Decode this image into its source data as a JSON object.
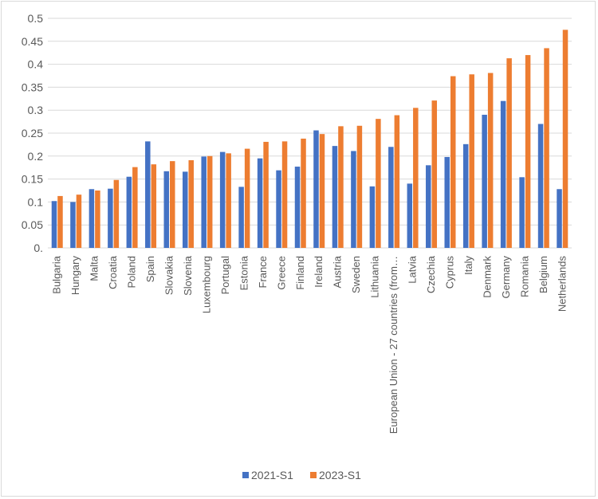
{
  "chart_data": {
    "type": "bar",
    "title": "",
    "xlabel": "",
    "ylabel": "",
    "ylim": [
      0,
      0.5
    ],
    "yticks": [
      0,
      0.05,
      0.1,
      0.15,
      0.2,
      0.25,
      0.3,
      0.35,
      0.4,
      0.45,
      0.5
    ],
    "ytick_labels": [
      "0.",
      "0.05",
      "0.1",
      "0.15",
      "0.2",
      "0.25",
      "0.3",
      "0.35",
      "0.4",
      "0.45",
      "0.5"
    ],
    "grid": true,
    "legend_position": "bottom",
    "categories": [
      "Bulgaria",
      "Hungary",
      "Malta",
      "Croatia",
      "Poland",
      "Spain",
      "Slovakia",
      "Slovenia",
      "Luxembourg",
      "Portugal",
      "Estonia",
      "France",
      "Greece",
      "Finland",
      "Ireland",
      "Austria",
      "Sweden",
      "Lithuania",
      "European Union - 27 countries (from…",
      "Latvia",
      "Czechia",
      "Cyprus",
      "Italy",
      "Denmark",
      "Germany",
      "Romania",
      "Belgium",
      "Netherlands"
    ],
    "series": [
      {
        "name": "2021-S1",
        "color": "#4472c4",
        "values": [
          0.102,
          0.1,
          0.128,
          0.129,
          0.155,
          0.232,
          0.167,
          0.166,
          0.199,
          0.209,
          0.133,
          0.195,
          0.169,
          0.177,
          0.256,
          0.222,
          0.211,
          0.134,
          0.22,
          0.14,
          0.18,
          0.198,
          0.226,
          0.29,
          0.32,
          0.154,
          0.27,
          0.128
        ]
      },
      {
        "name": "2023-S1",
        "color": "#ed7d31",
        "values": [
          0.113,
          0.116,
          0.125,
          0.148,
          0.176,
          0.182,
          0.189,
          0.191,
          0.2,
          0.206,
          0.216,
          0.231,
          0.232,
          0.238,
          0.248,
          0.265,
          0.266,
          0.281,
          0.289,
          0.305,
          0.321,
          0.374,
          0.378,
          0.381,
          0.413,
          0.42,
          0.435,
          0.475
        ]
      }
    ]
  }
}
